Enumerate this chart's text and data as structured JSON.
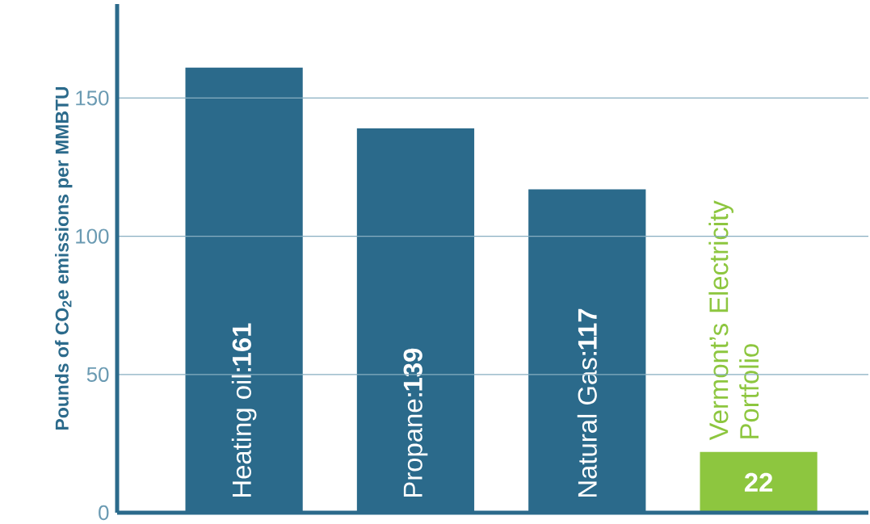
{
  "chart_data": {
    "type": "bar",
    "ylabel": "Pounds of CO$_{2}$e emissions per MMBTU",
    "categories": [
      "Heating oil",
      "Propane",
      "Natural Gas",
      "Vermont’s Electricity Portfolio"
    ],
    "values": [
      161,
      139,
      117,
      22
    ],
    "value_labels": [
      "161",
      "139",
      "117",
      "22"
    ],
    "colors": [
      "#2b6a8b",
      "#2b6a8b",
      "#2b6a8b",
      "#8dc63f"
    ],
    "ylim": [
      0,
      184
    ],
    "yticks": [
      0,
      50,
      100,
      150
    ],
    "grid": "y"
  }
}
